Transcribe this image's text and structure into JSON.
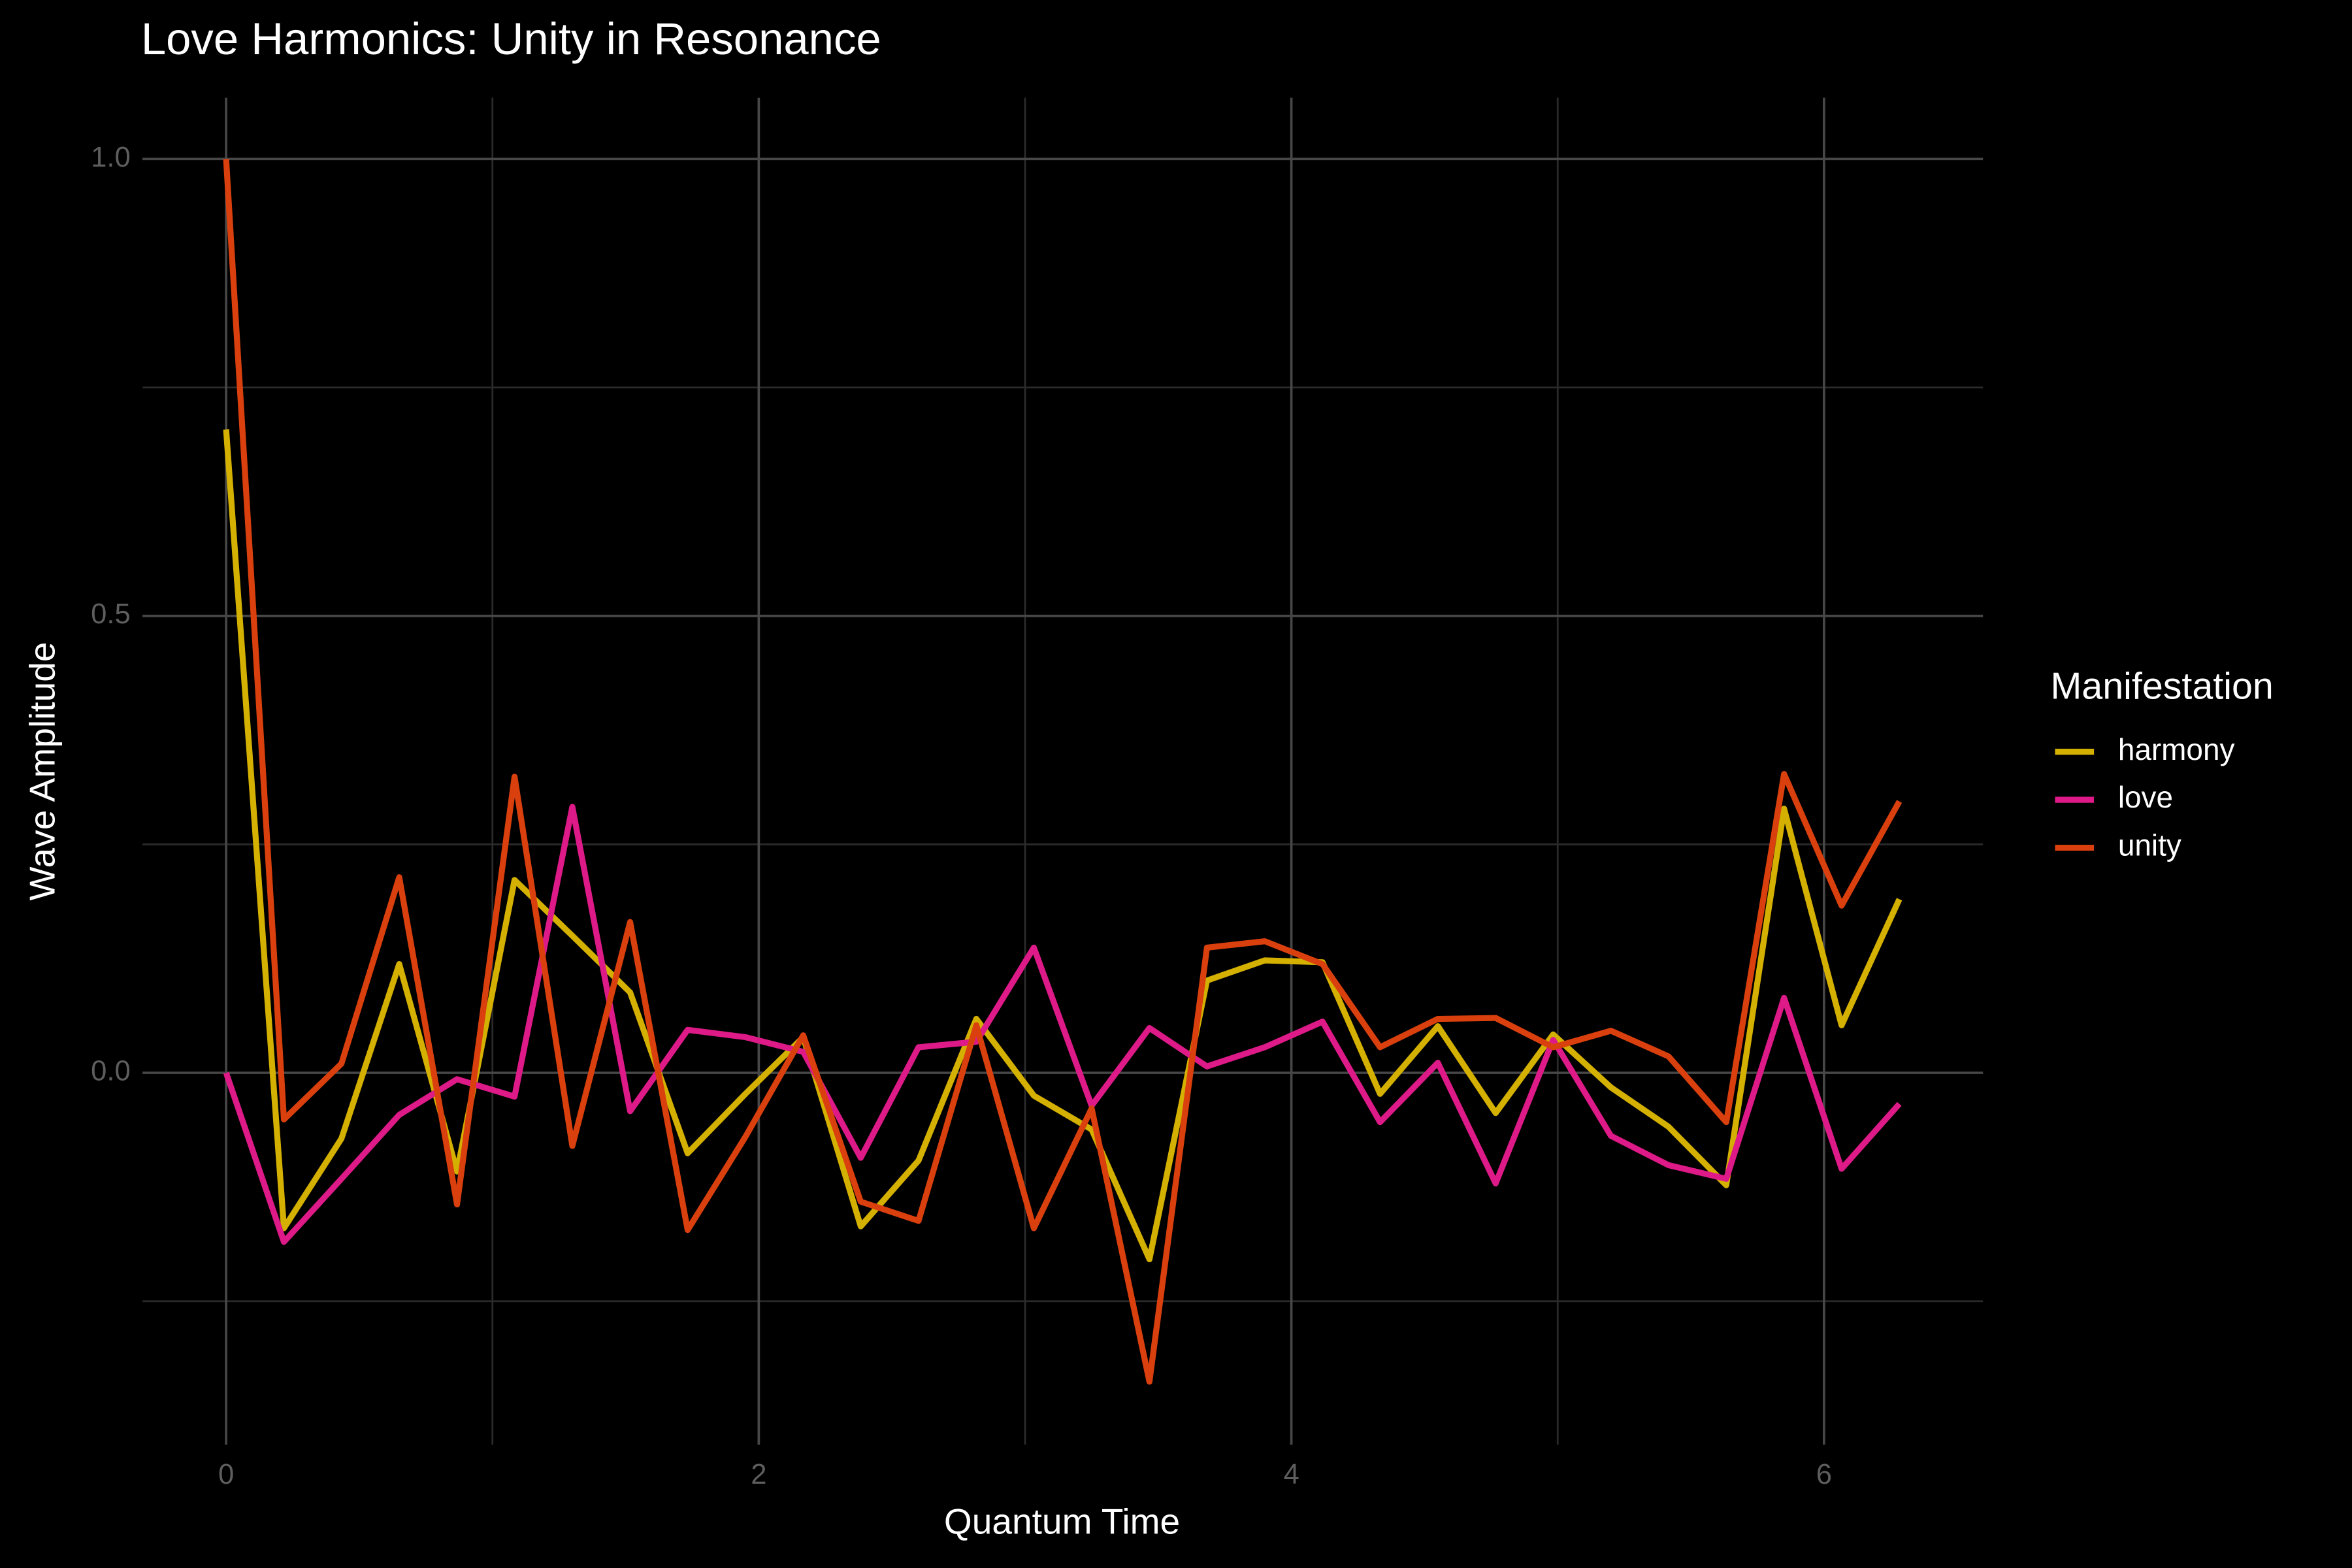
{
  "chart_data": {
    "type": "line",
    "title": "Love Harmonics: Unity in Resonance",
    "x_label": "Quantum Time",
    "y_label": "Wave Amplitude",
    "legend_title": "Manifestation",
    "legend_position": "right",
    "grid": true,
    "x": [
      0,
      0.217,
      0.433,
      0.65,
      0.867,
      1.083,
      1.3,
      1.517,
      1.733,
      1.95,
      2.167,
      2.383,
      2.6,
      2.817,
      3.033,
      3.25,
      3.467,
      3.683,
      3.9,
      4.117,
      4.333,
      4.55,
      4.767,
      4.983,
      5.2,
      5.416,
      5.633,
      5.85,
      6.066,
      6.283
    ],
    "xlim": [
      -0.314,
      6.597
    ],
    "xticks": [
      0,
      2,
      4,
      6
    ],
    "x_minor_grid": [
      1,
      3,
      5
    ],
    "ylim": [
      -0.407,
      1.067
    ],
    "yticks": [
      {
        "value": 0,
        "label": "0.0"
      },
      0.5,
      {
        "value": 1,
        "label": "1.0"
      }
    ],
    "y_minor_grid": [
      -0.25,
      0.25,
      0.75
    ],
    "series": [
      {
        "name": "harmony",
        "color": "#d4b000",
        "values": [
          0.704,
          -0.17,
          -0.072,
          0.119,
          -0.108,
          0.211,
          0.15,
          0.088,
          -0.088,
          -0.023,
          0.039,
          -0.168,
          -0.096,
          0.059,
          -0.025,
          -0.062,
          -0.204,
          0.101,
          0.123,
          0.121,
          -0.023,
          0.051,
          -0.044,
          0.042,
          -0.016,
          -0.059,
          -0.123,
          0.289,
          0.052,
          0.19
        ]
      },
      {
        "name": "love",
        "color": "#dd1a88",
        "values": [
          0,
          -0.185,
          -0.116,
          -0.046,
          -0.007,
          -0.026,
          0.291,
          -0.042,
          0.047,
          0.039,
          0.023,
          -0.093,
          0.028,
          0.034,
          0.137,
          -0.036,
          0.049,
          0.007,
          0.028,
          0.056,
          -0.054,
          0.011,
          -0.121,
          0.036,
          -0.069,
          -0.101,
          -0.116,
          0.082,
          -0.105,
          -0.034
        ]
      },
      {
        "name": "unity",
        "color": "#d9400e",
        "values": [
          1.0,
          -0.051,
          0.01,
          0.214,
          -0.144,
          0.324,
          -0.08,
          0.165,
          -0.172,
          -0.07,
          0.041,
          -0.141,
          -0.162,
          0.052,
          -0.17,
          -0.039,
          -0.338,
          0.137,
          0.144,
          0.119,
          0.028,
          0.059,
          0.06,
          0.028,
          0.046,
          0.018,
          -0.054,
          0.327,
          0.183,
          0.297
        ]
      }
    ]
  }
}
